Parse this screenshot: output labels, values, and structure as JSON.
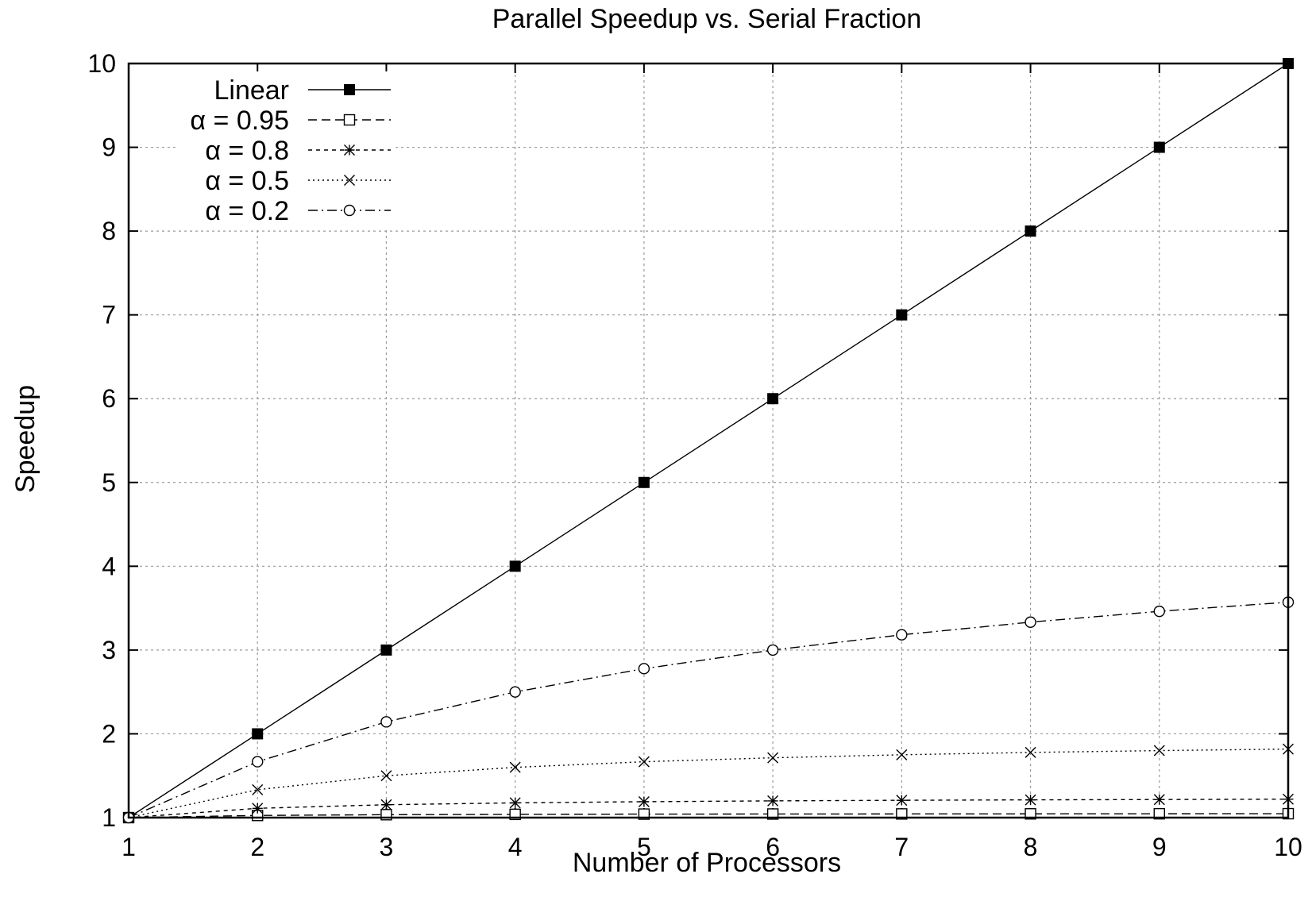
{
  "chart_data": {
    "type": "line",
    "title": "Parallel Speedup vs. Serial Fraction",
    "xlabel": "Number of Processors",
    "ylabel": "Speedup",
    "xlim": [
      1,
      10
    ],
    "ylim": [
      1,
      10
    ],
    "x_ticks": [
      "1",
      "2",
      "3",
      "4",
      "5",
      "6",
      "7",
      "8",
      "9",
      "10"
    ],
    "y_ticks": [
      "1",
      "2",
      "3",
      "4",
      "5",
      "6",
      "7",
      "8",
      "9",
      "10"
    ],
    "grid": true,
    "legend_position": "top-left",
    "x": [
      1,
      2,
      3,
      4,
      5,
      6,
      7,
      8,
      9,
      10
    ],
    "series": [
      {
        "name": "Linear",
        "marker": "filled-square",
        "dash": "solid",
        "values": [
          1,
          2,
          3,
          4,
          5,
          6,
          7,
          8,
          9,
          10
        ]
      },
      {
        "name": "α = 0.95",
        "marker": "open-square",
        "dash": "dashed",
        "values": [
          1,
          1.026,
          1.035,
          1.039,
          1.042,
          1.043,
          1.044,
          1.045,
          1.046,
          1.047
        ]
      },
      {
        "name": "α = 0.8",
        "marker": "asterisk",
        "dash": "short-dashed",
        "values": [
          1,
          1.111,
          1.154,
          1.176,
          1.19,
          1.2,
          1.207,
          1.212,
          1.216,
          1.22
        ]
      },
      {
        "name": "α = 0.5",
        "marker": "cross",
        "dash": "dotted",
        "values": [
          1,
          1.333,
          1.5,
          1.6,
          1.667,
          1.714,
          1.75,
          1.778,
          1.8,
          1.818
        ]
      },
      {
        "name": "α = 0.2",
        "marker": "open-circle",
        "dash": "dash-dot",
        "values": [
          1,
          1.667,
          2.143,
          2.5,
          2.778,
          3.0,
          3.182,
          3.333,
          3.462,
          3.571
        ]
      }
    ]
  }
}
